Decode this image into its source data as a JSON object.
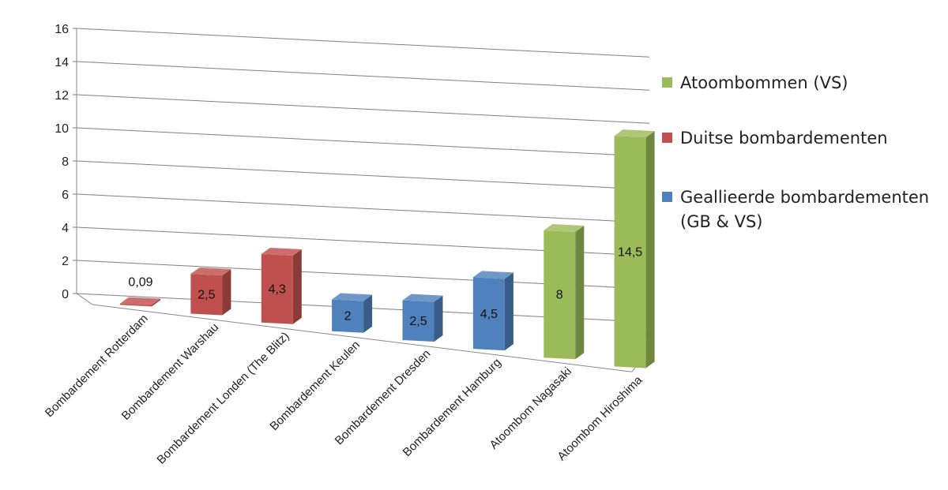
{
  "chart_data": {
    "type": "bar",
    "style": "3d-column",
    "categories": [
      "Bombardement Rotterdam",
      "Bombardement Warshau",
      "Bombardement Londen (The Blitz)",
      "Bombardement Keulen",
      "Bombardement Dresden",
      "Bombardement Hamburg",
      "Atoombom Nagasaki",
      "Atoombom Hiroshima"
    ],
    "values": [
      0.09,
      2.5,
      4.3,
      2,
      2.5,
      4.5,
      8,
      14.5
    ],
    "data_labels": [
      "0,09",
      "2,5",
      "4,3",
      "2",
      "2,5",
      "4,5",
      "8",
      "14,5"
    ],
    "series_index": [
      1,
      1,
      1,
      2,
      2,
      2,
      0,
      0
    ],
    "series": [
      {
        "name": "Atoombommen (VS)",
        "color": "#9bbb59"
      },
      {
        "name": "Duitse bombardementen",
        "color": "#c0504d"
      },
      {
        "name": "Geallieerde bombardementen\n(GB & VS)",
        "color": "#4f81bd"
      }
    ],
    "ylim": [
      0,
      16
    ],
    "yticks": [
      "0",
      "2",
      "4",
      "6",
      "8",
      "10",
      "12",
      "14",
      "16"
    ],
    "grid": true,
    "legend_position": "right",
    "title": "",
    "xlabel": "",
    "ylabel": ""
  }
}
